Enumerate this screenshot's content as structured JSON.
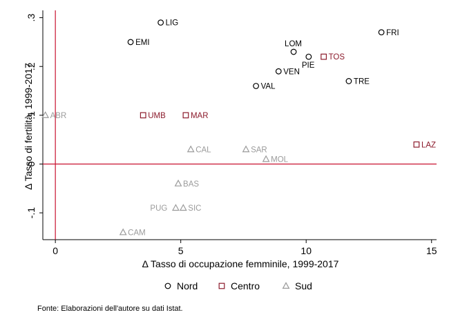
{
  "chart_data": {
    "type": "scatter",
    "xlabel": "Δ Tasso di occupazione femminile, 1999-2017",
    "ylabel": "Δ Tasso di fertilità, 1999-2017",
    "xlim": [
      -0.5,
      15.2
    ],
    "ylim": [
      -0.155,
      0.315
    ],
    "x_ticks": [
      {
        "value": 0,
        "label": "0"
      },
      {
        "value": 5,
        "label": "5"
      },
      {
        "value": 10,
        "label": "10"
      },
      {
        "value": 15,
        "label": "15"
      }
    ],
    "y_ticks": [
      {
        "value": -0.1,
        "label": "-.1"
      },
      {
        "value": 0,
        "label": "0"
      },
      {
        "value": 0.1,
        "label": ".1"
      },
      {
        "value": 0.2,
        "label": ".2"
      },
      {
        "value": 0.3,
        "label": ".3"
      }
    ],
    "reference_lines": {
      "x": 0,
      "y": 0,
      "color": "#c8102e"
    },
    "grid": false,
    "legend_position": "bottom",
    "series": [
      {
        "name": "Nord",
        "marker": "circle",
        "color": "#000000",
        "points": [
          {
            "label": "LIG",
            "x": 4.2,
            "y": 0.29
          },
          {
            "label": "EMI",
            "x": 3.0,
            "y": 0.25
          },
          {
            "label": "LOM",
            "x": 9.5,
            "y": 0.23
          },
          {
            "label": "PIE",
            "x": 10.1,
            "y": 0.22
          },
          {
            "label": "FRI",
            "x": 13.0,
            "y": 0.27
          },
          {
            "label": "VEN",
            "x": 8.9,
            "y": 0.19
          },
          {
            "label": "VAL",
            "x": 8.0,
            "y": 0.16
          },
          {
            "label": "TRE",
            "x": 11.7,
            "y": 0.17
          }
        ]
      },
      {
        "name": "Centro",
        "marker": "square",
        "color": "#8b1a2b",
        "points": [
          {
            "label": "TOS",
            "x": 10.7,
            "y": 0.22
          },
          {
            "label": "UMB",
            "x": 3.5,
            "y": 0.1
          },
          {
            "label": "MAR",
            "x": 5.2,
            "y": 0.1
          },
          {
            "label": "LAZ",
            "x": 14.4,
            "y": 0.04
          }
        ]
      },
      {
        "name": "Sud",
        "marker": "triangle",
        "color": "#9b9b9b",
        "points": [
          {
            "label": "ABR",
            "x": -0.4,
            "y": 0.1
          },
          {
            "label": "CAL",
            "x": 5.4,
            "y": 0.03
          },
          {
            "label": "SAR",
            "x": 7.6,
            "y": 0.03
          },
          {
            "label": "MOL",
            "x": 8.4,
            "y": 0.01
          },
          {
            "label": "BAS",
            "x": 4.9,
            "y": -0.04
          },
          {
            "label": "PUG",
            "x": 4.8,
            "y": -0.09
          },
          {
            "label": "SIC",
            "x": 5.1,
            "y": -0.09
          },
          {
            "label": "CAM",
            "x": 2.7,
            "y": -0.14
          }
        ]
      }
    ]
  },
  "note": "Fonte: Elaborazioni dell'autore su dati Istat."
}
